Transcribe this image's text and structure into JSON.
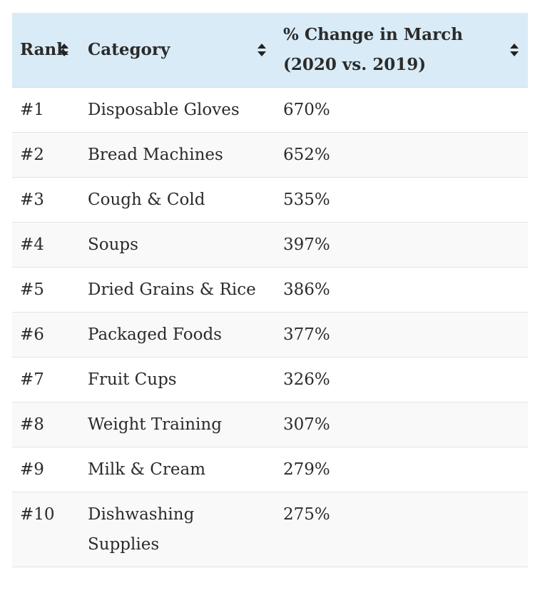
{
  "table": {
    "header": [
      "Rank",
      "Category",
      "% Change in March (2020 vs. 2019)"
    ],
    "rows": [
      [
        "#1",
        "Disposable Gloves",
        "670%"
      ],
      [
        "#2",
        "Bread Machines",
        "652%"
      ],
      [
        "#3",
        "Cough & Cold",
        "535%"
      ],
      [
        "#4",
        "Soups",
        "397%"
      ],
      [
        "#5",
        "Dried Grains & Rice",
        "386%"
      ],
      [
        "#6",
        "Packaged Foods",
        "377%"
      ],
      [
        "#7",
        "Fruit Cups",
        "326%"
      ],
      [
        "#8",
        "Weight Training",
        "307%"
      ],
      [
        "#9",
        "Milk & Cream",
        "279%"
      ],
      [
        "#10",
        "Dishwashing Supplies",
        "275%"
      ]
    ]
  }
}
